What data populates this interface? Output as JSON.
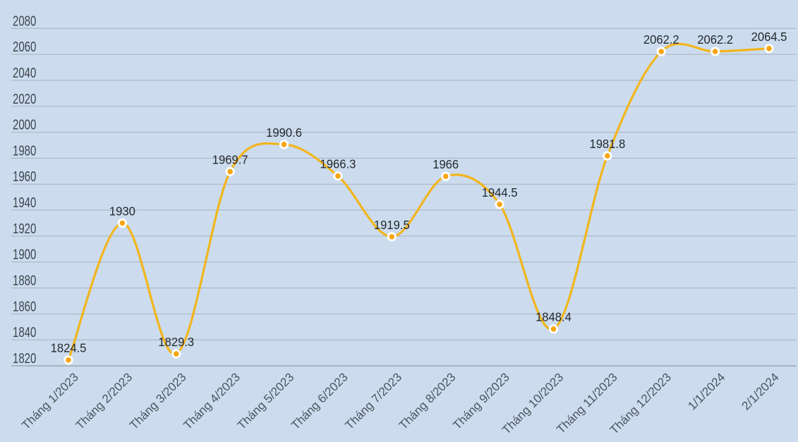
{
  "chart_data": {
    "type": "line",
    "categories": [
      "Tháng 1/2023",
      "Tháng 2/2023",
      "Tháng 3/2023",
      "Tháng 4/2023",
      "Tháng 5/2023",
      "Tháng 6/2023",
      "Tháng 7/2023",
      "Tháng 8/2023",
      "Tháng 9/2023",
      "Tháng 10/2023",
      "Tháng 11/2023",
      "Tháng 12/2023",
      "1/1/2024",
      "2/1/2024"
    ],
    "series": [
      {
        "name": "",
        "values": [
          1824.5,
          1930,
          1829.3,
          1969.7,
          1990.6,
          1966.3,
          1919.5,
          1966,
          1944.5,
          1848.4,
          1981.8,
          2062.2,
          2062.2,
          2064.5
        ],
        "data_labels": [
          "1824.5",
          "1930",
          "1829.3",
          "1969.7",
          "1990.6",
          "1966.3",
          "1919.5",
          "1966",
          "1944.5",
          "1848.4",
          "1981.8",
          "2062.2",
          "2062.2",
          "2064.5"
        ]
      }
    ],
    "title": "",
    "xlabel": "",
    "ylabel": "",
    "ylim": [
      1820,
      2080
    ],
    "ytick_step": 20,
    "ytick_labels": [
      "1820",
      "1840",
      "1860",
      "1880",
      "1900",
      "1920",
      "1940",
      "1960",
      "1980",
      "2000",
      "2020",
      "2040",
      "2060",
      "2080"
    ],
    "grid": true,
    "legend": false,
    "line_shape": "spline",
    "x_label_rotation": -45,
    "colors": {
      "background": "#CCDCEE",
      "gridline": "#A7B0BC",
      "axis_line": "#99A3AF",
      "line": "#F2B51D",
      "marker_fill": "#F7A512",
      "marker_ring": "#FFFFFF",
      "data_label_text": "#25292E",
      "y_axis_label_text": "#3F454D",
      "x_axis_label_text": "#4C545E"
    }
  }
}
